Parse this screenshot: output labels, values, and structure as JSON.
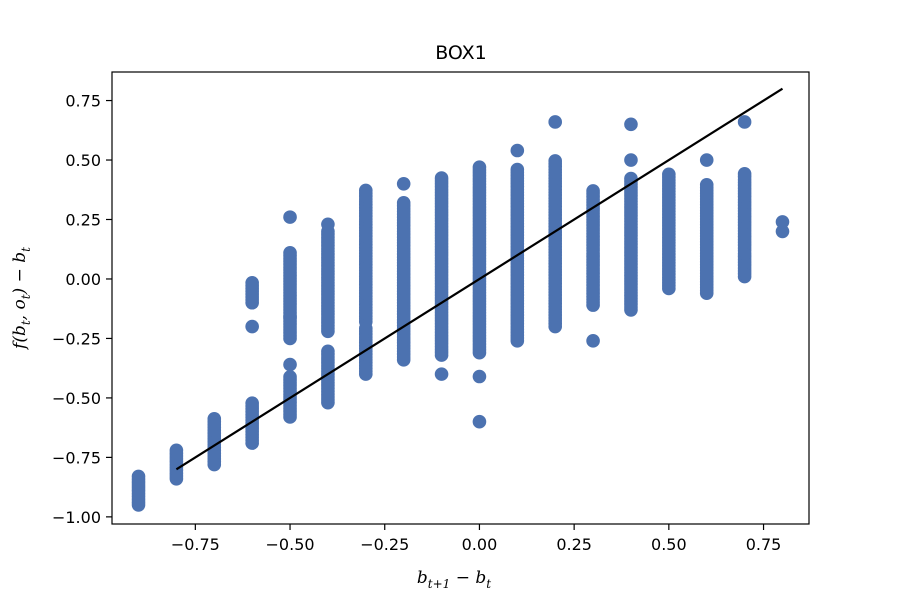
{
  "chart_data": {
    "type": "scatter",
    "title": "BOX1",
    "xlabel": {
      "main": "b",
      "sub1": "t+1",
      "mid": " − b",
      "sub2": "t"
    },
    "ylabel": {
      "pre": "f(b",
      "sub1": "t",
      "mid1": ", o",
      "sub2": "t",
      "mid2": ") − b",
      "sub3": "t"
    },
    "xlim": [
      -0.97,
      0.87
    ],
    "ylim": [
      -1.03,
      0.87
    ],
    "xticks": [
      -0.75,
      -0.5,
      -0.25,
      0.0,
      0.25,
      0.5,
      0.75
    ],
    "xtick_labels": [
      "−0.75",
      "−0.50",
      "−0.25",
      "0.00",
      "0.25",
      "0.50",
      "0.75"
    ],
    "yticks": [
      -1.0,
      -0.75,
      -0.5,
      -0.25,
      0.0,
      0.25,
      0.5,
      0.75
    ],
    "ytick_labels": [
      "−1.00",
      "−0.75",
      "−0.50",
      "−0.25",
      "0.00",
      "0.25",
      "0.50",
      "0.75"
    ],
    "grid": false,
    "point_color": "#4c72b0",
    "line_color": "#000000",
    "series": [
      {
        "kind": "scatter",
        "columns": [
          {
            "x": -0.9,
            "segments": [
              [
                -0.95,
                -0.82
              ]
            ]
          },
          {
            "x": -0.8,
            "segments": [
              [
                -0.84,
                -0.72
              ]
            ]
          },
          {
            "x": -0.7,
            "segments": [
              [
                -0.78,
                -0.58
              ]
            ]
          },
          {
            "x": -0.6,
            "segments": [
              [
                -0.69,
                -0.52
              ],
              [
                -0.1,
                -0.01
              ]
            ],
            "points": [
              -0.2
            ]
          },
          {
            "x": -0.5,
            "segments": [
              [
                -0.58,
                -0.41
              ],
              [
                -0.25,
                0.11
              ]
            ],
            "points": [
              0.26,
              -0.36,
              -0.16
            ]
          },
          {
            "x": -0.4,
            "segments": [
              [
                -0.52,
                -0.3
              ],
              [
                -0.22,
                0.2
              ]
            ],
            "points": [
              0.23
            ]
          },
          {
            "x": -0.3,
            "segments": [
              [
                -0.4,
                -0.2
              ],
              [
                -0.18,
                0.38
              ]
            ]
          },
          {
            "x": -0.2,
            "segments": [
              [
                -0.34,
                0.32
              ]
            ],
            "points": [
              0.4
            ]
          },
          {
            "x": -0.1,
            "segments": [
              [
                -0.32,
                0.43
              ]
            ],
            "points": [
              -0.4
            ]
          },
          {
            "x": 0.0,
            "segments": [
              [
                -0.31,
                0.47
              ]
            ],
            "points": [
              -0.41,
              -0.6
            ]
          },
          {
            "x": 0.1,
            "segments": [
              [
                -0.26,
                0.46
              ]
            ],
            "points": [
              0.54
            ]
          },
          {
            "x": 0.2,
            "segments": [
              [
                -0.2,
                0.5
              ]
            ],
            "points": [
              0.66
            ]
          },
          {
            "x": 0.3,
            "segments": [
              [
                -0.11,
                0.37
              ]
            ],
            "points": [
              -0.26
            ]
          },
          {
            "x": 0.4,
            "segments": [
              [
                -0.13,
                0.43
              ]
            ],
            "points": [
              0.5,
              0.65
            ]
          },
          {
            "x": 0.5,
            "segments": [
              [
                -0.04,
                0.45
              ]
            ]
          },
          {
            "x": 0.6,
            "segments": [
              [
                -0.06,
                0.4
              ]
            ],
            "points": [
              0.5
            ]
          },
          {
            "x": 0.7,
            "segments": [
              [
                0.01,
                0.45
              ]
            ],
            "points": [
              0.66
            ]
          },
          {
            "x": 0.8,
            "segments": [],
            "points": [
              0.2,
              0.24
            ]
          }
        ]
      },
      {
        "kind": "line",
        "x": [
          -0.8,
          0.8
        ],
        "y": [
          -0.8,
          0.8
        ]
      }
    ]
  }
}
